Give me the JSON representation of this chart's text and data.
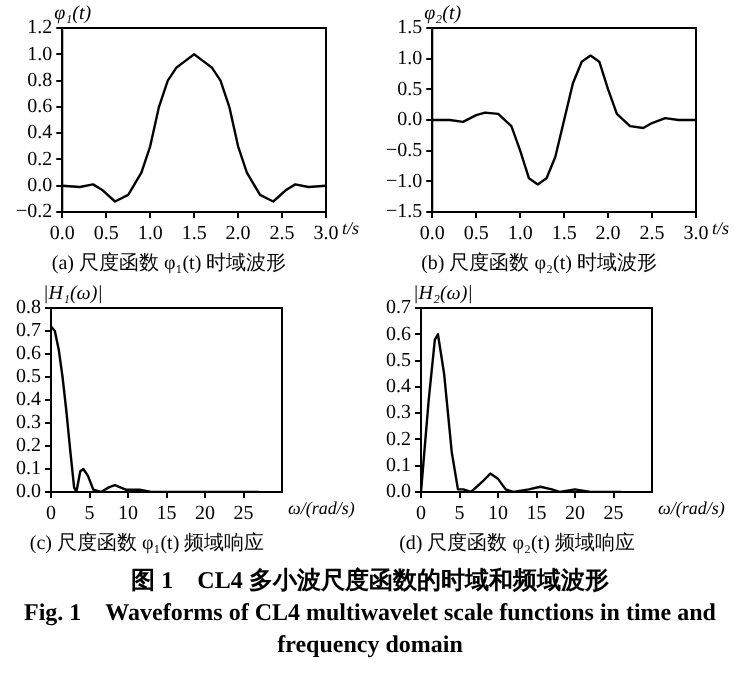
{
  "chart_data": [
    {
      "type": "line",
      "title": "(a) 尺度函数 φ₁(t) 时域波形",
      "ylabel": "φ₁(t)",
      "xlabel": "t/s",
      "legend": false,
      "annotations": [
        "图 1　CL4 多小波尺度函数的时域和频域波形",
        "Fig. 1　Waveforms of CL4 multiwavelet scale functions in time and frequency domain"
      ],
      "xlim": [
        0,
        3
      ],
      "xticks": [
        {
          "value": 0,
          "label": "0.0"
        },
        {
          "value": 0.5,
          "label": "0.5"
        },
        {
          "value": 1,
          "label": "1.0"
        },
        {
          "value": 1.5,
          "label": "1.5"
        },
        {
          "value": 2,
          "label": "2.0"
        },
        {
          "value": 2.5,
          "label": "2.5"
        },
        {
          "value": 3,
          "label": "3.0"
        }
      ],
      "ylim": [
        -0.2,
        1.2
      ],
      "yticks": [
        {
          "value": -0.2,
          "label": "−0.2"
        },
        {
          "value": 0,
          "label": "0.0"
        },
        {
          "value": 0.2,
          "label": "0.2"
        },
        {
          "value": 0.4,
          "label": "0.4"
        },
        {
          "value": 0.6,
          "label": "0.6"
        },
        {
          "value": 0.8,
          "label": "0.8"
        },
        {
          "value": 1,
          "label": "1.0"
        },
        {
          "value": 1.2,
          "label": "1.2"
        }
      ],
      "series": [
        {
          "color": "#000000",
          "x": [
            0,
            0.2,
            0.35,
            0.45,
            0.6,
            0.75,
            0.9,
            1.0,
            1.1,
            1.2,
            1.3,
            1.4,
            1.5,
            1.6,
            1.7,
            1.8,
            1.9,
            2.0,
            2.1,
            2.25,
            2.4,
            2.55,
            2.65,
            2.8,
            3.0
          ],
          "values": [
            0,
            -0.01,
            0.01,
            -0.03,
            -0.12,
            -0.07,
            0.1,
            0.3,
            0.6,
            0.8,
            0.9,
            0.95,
            1.0,
            0.95,
            0.9,
            0.8,
            0.6,
            0.3,
            0.1,
            -0.07,
            -0.12,
            -0.03,
            0.01,
            -0.01,
            0
          ]
        }
      ]
    },
    {
      "type": "line",
      "title": "(b) 尺度函数 φ₂(t) 时域波形",
      "ylabel": "φ₂(t)",
      "xlabel": "t/s",
      "legend": false,
      "xlim": [
        0,
        3
      ],
      "xticks": [
        {
          "value": 0,
          "label": "0.0"
        },
        {
          "value": 0.5,
          "label": "0.5"
        },
        {
          "value": 1,
          "label": "1.0"
        },
        {
          "value": 1.5,
          "label": "1.5"
        },
        {
          "value": 2,
          "label": "2.0"
        },
        {
          "value": 2.5,
          "label": "2.5"
        },
        {
          "value": 3,
          "label": "3.0"
        }
      ],
      "ylim": [
        -1.5,
        1.5
      ],
      "yticks": [
        {
          "value": -1.5,
          "label": "−1.5"
        },
        {
          "value": -1,
          "label": "−1.0"
        },
        {
          "value": -0.5,
          "label": "−0.5"
        },
        {
          "value": 0,
          "label": "0.0"
        },
        {
          "value": 0.5,
          "label": "0.5"
        },
        {
          "value": 1,
          "label": "1.0"
        },
        {
          "value": 1.5,
          "label": "1.5"
        }
      ],
      "series": [
        {
          "color": "#000000",
          "x": [
            0,
            0.2,
            0.35,
            0.5,
            0.6,
            0.75,
            0.9,
            1.0,
            1.1,
            1.2,
            1.3,
            1.4,
            1.5,
            1.6,
            1.7,
            1.8,
            1.9,
            2.0,
            2.1,
            2.25,
            2.4,
            2.5,
            2.65,
            2.8,
            3.0
          ],
          "values": [
            0,
            0,
            -0.03,
            0.08,
            0.12,
            0.1,
            -0.1,
            -0.5,
            -0.95,
            -1.05,
            -0.95,
            -0.6,
            0,
            0.6,
            0.95,
            1.05,
            0.95,
            0.5,
            0.1,
            -0.1,
            -0.13,
            -0.05,
            0.03,
            0,
            0
          ]
        }
      ]
    },
    {
      "type": "line",
      "title": "(c) 尺度函数 φ₁(t) 频域响应",
      "ylabel": "|H₁(ω)|",
      "xlabel": "ω/(rad/s)",
      "legend": false,
      "xlim": [
        0,
        30
      ],
      "xticks": [
        0,
        5,
        10,
        15,
        20,
        25
      ],
      "ylim": [
        0,
        0.8
      ],
      "yticks": [
        {
          "value": 0,
          "label": "0.0"
        },
        0.1,
        0.2,
        0.3,
        0.4,
        0.5,
        0.6,
        0.7,
        0.8
      ],
      "series": [
        {
          "color": "#000000",
          "x": [
            0,
            0.5,
            1,
            1.5,
            2,
            2.5,
            3,
            3.3,
            3.8,
            4.2,
            4.8,
            5.5,
            6.5,
            7.5,
            8.3,
            9,
            9.7,
            10.5,
            11.5,
            13,
            15,
            17,
            20,
            23,
            25,
            27
          ],
          "values": [
            0.72,
            0.7,
            0.62,
            0.5,
            0.35,
            0.18,
            0.02,
            0,
            0.09,
            0.1,
            0.07,
            0.01,
            0,
            0.02,
            0.03,
            0.02,
            0.01,
            0.01,
            0.01,
            0,
            0,
            0,
            0,
            0,
            0,
            0
          ]
        }
      ]
    },
    {
      "type": "line",
      "title": "(d) 尺度函数 φ₂(t) 频域响应",
      "ylabel": "|H₂(ω)|",
      "xlabel": "ω/(rad/s)",
      "legend": false,
      "xlim": [
        0,
        30
      ],
      "xticks": [
        0,
        5,
        10,
        15,
        20,
        25
      ],
      "ylim": [
        0,
        0.7
      ],
      "yticks": [
        {
          "value": 0,
          "label": "0.0"
        },
        0.1,
        0.2,
        0.3,
        0.4,
        0.5,
        0.6,
        0.7
      ],
      "series": [
        {
          "color": "#000000",
          "x": [
            0,
            1,
            1.8,
            2.2,
            3,
            4,
            4.8,
            5.5,
            6.5,
            8,
            9,
            10,
            11,
            12,
            14,
            15.5,
            17,
            18,
            20,
            22,
            24,
            26
          ],
          "values": [
            0,
            0.35,
            0.58,
            0.6,
            0.45,
            0.15,
            0.01,
            0.01,
            0,
            0.04,
            0.07,
            0.05,
            0.01,
            0,
            0.01,
            0.02,
            0.01,
            0,
            0.01,
            0,
            0,
            0
          ]
        }
      ]
    }
  ]
}
